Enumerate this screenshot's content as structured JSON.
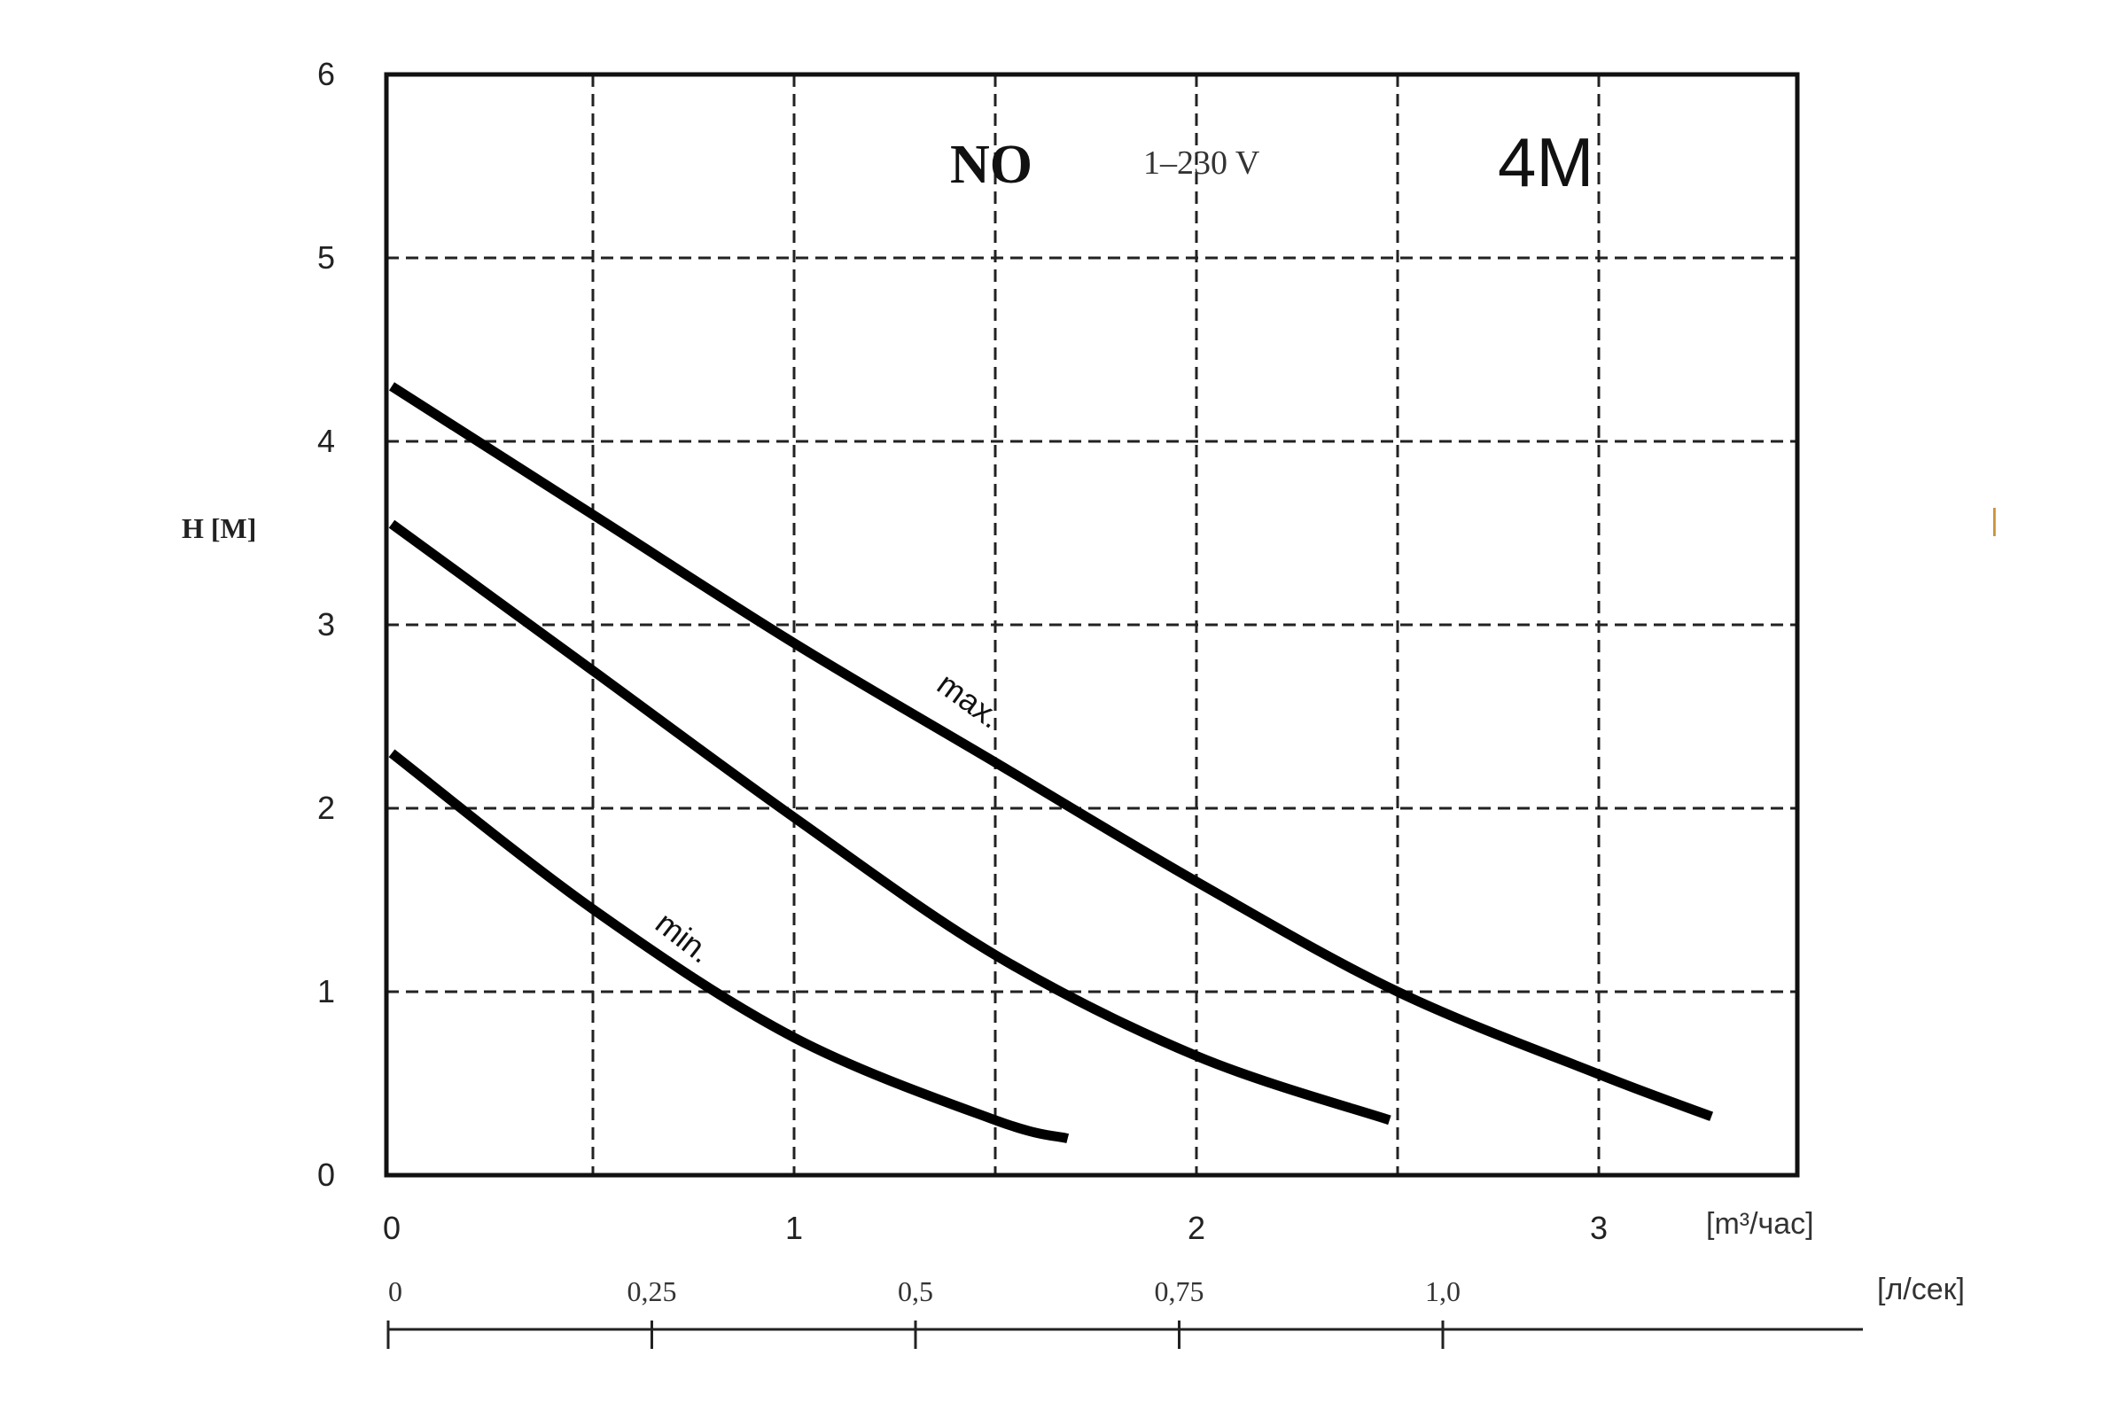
{
  "chart_data": {
    "type": "line",
    "title": {
      "series_code": "NO",
      "voltage": "1–230 V",
      "model": "4M"
    },
    "ylabel": "H [M]",
    "xlabel": "[m³/час]",
    "xlabel_secondary": "[л/сек]",
    "xlim": [
      0,
      3.5
    ],
    "ylim": [
      0,
      6
    ],
    "grid": true,
    "x_ticks": [
      {
        "value": 0,
        "label": "0"
      },
      {
        "value": 1,
        "label": "1"
      },
      {
        "value": 2,
        "label": "2"
      },
      {
        "value": 3,
        "label": "3"
      }
    ],
    "y_ticks": [
      {
        "value": 0,
        "label": "0"
      },
      {
        "value": 1,
        "label": "1"
      },
      {
        "value": 2,
        "label": "2"
      },
      {
        "value": 3,
        "label": "3"
      },
      {
        "value": 4,
        "label": "4"
      },
      {
        "value": 5,
        "label": "5"
      },
      {
        "value": 6,
        "label": "6"
      }
    ],
    "secondary_axis_ticks": [
      {
        "value": 0,
        "label": "0"
      },
      {
        "value": 0.25,
        "label": "0,25"
      },
      {
        "value": 0.5,
        "label": "0,5"
      },
      {
        "value": 0.75,
        "label": "0,75"
      },
      {
        "value": 1.0,
        "label": "1,0"
      }
    ],
    "series": [
      {
        "name": "max.",
        "x": [
          0,
          0.5,
          1.0,
          1.5,
          2.0,
          2.5,
          3.0,
          3.28
        ],
        "values": [
          4.3,
          3.6,
          2.9,
          2.25,
          1.6,
          1.0,
          0.55,
          0.32
        ]
      },
      {
        "name": "",
        "x": [
          0,
          0.5,
          1.0,
          1.5,
          2.0,
          2.48
        ],
        "values": [
          3.55,
          2.75,
          1.95,
          1.2,
          0.65,
          0.3
        ]
      },
      {
        "name": "min.",
        "x": [
          0,
          0.5,
          1.0,
          1.5,
          1.68
        ],
        "values": [
          2.3,
          1.45,
          0.75,
          0.3,
          0.2
        ]
      }
    ],
    "curve_labels": [
      {
        "text": "max.",
        "x": 1.35,
        "y": 2.65,
        "angle": 36
      },
      {
        "text": "min.",
        "x": 0.65,
        "y": 1.35,
        "angle": 38
      }
    ]
  },
  "extra_mark": "|"
}
